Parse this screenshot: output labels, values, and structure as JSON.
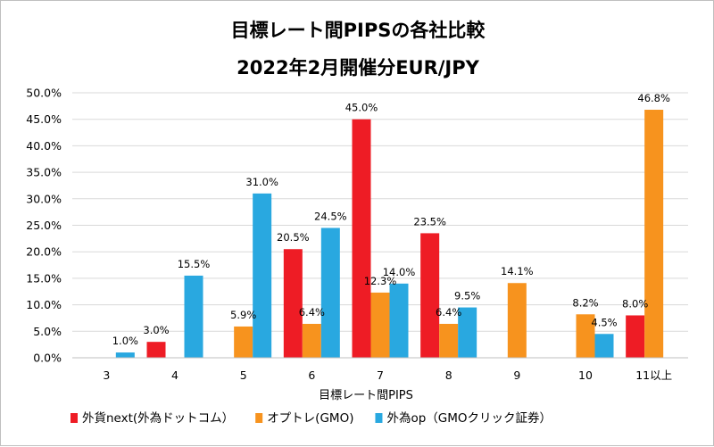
{
  "chart_data": {
    "type": "bar",
    "title_lines": [
      "目標レート間PIPSの各社比較",
      "2022年2月開催分EUR/JPY"
    ],
    "xlabel": "目標レート間PIPS",
    "ylabel": "",
    "ylim": [
      0,
      50
    ],
    "ytick_labels": [
      "0.0%",
      "5.0%",
      "10.0%",
      "15.0%",
      "20.0%",
      "25.0%",
      "30.0%",
      "35.0%",
      "40.0%",
      "45.0%",
      "50.0%"
    ],
    "grid": true,
    "legend_position": "bottom",
    "categories": [
      "3",
      "4",
      "5",
      "6",
      "7",
      "8",
      "9",
      "10",
      "11以上"
    ],
    "series": [
      {
        "name": "外貨next(外為ドットコム）",
        "color": "#EE1C25",
        "values": [
          null,
          3.0,
          null,
          20.5,
          45.0,
          23.5,
          null,
          null,
          8.0
        ],
        "labels": [
          "",
          "3.0%",
          "",
          "20.5%",
          "45.0%",
          "23.5%",
          "",
          "",
          "8.0%"
        ]
      },
      {
        "name": "オプトレ(GMO)",
        "color": "#F7931E",
        "values": [
          null,
          null,
          5.9,
          6.4,
          12.3,
          6.4,
          14.1,
          8.2,
          46.8
        ],
        "labels": [
          "",
          "",
          "5.9%",
          "6.4%",
          "12.3%",
          "6.4%",
          "14.1%",
          "8.2%",
          "46.8%"
        ]
      },
      {
        "name": "外為op（GMOクリック証券）",
        "color": "#29A8E0",
        "values": [
          1.0,
          15.5,
          31.0,
          24.5,
          14.0,
          9.5,
          null,
          4.5,
          null
        ],
        "labels": [
          "1.0%",
          "15.5%",
          "31.0%",
          "24.5%",
          "14.0%",
          "9.5%",
          "",
          "4.5%",
          ""
        ]
      }
    ]
  }
}
